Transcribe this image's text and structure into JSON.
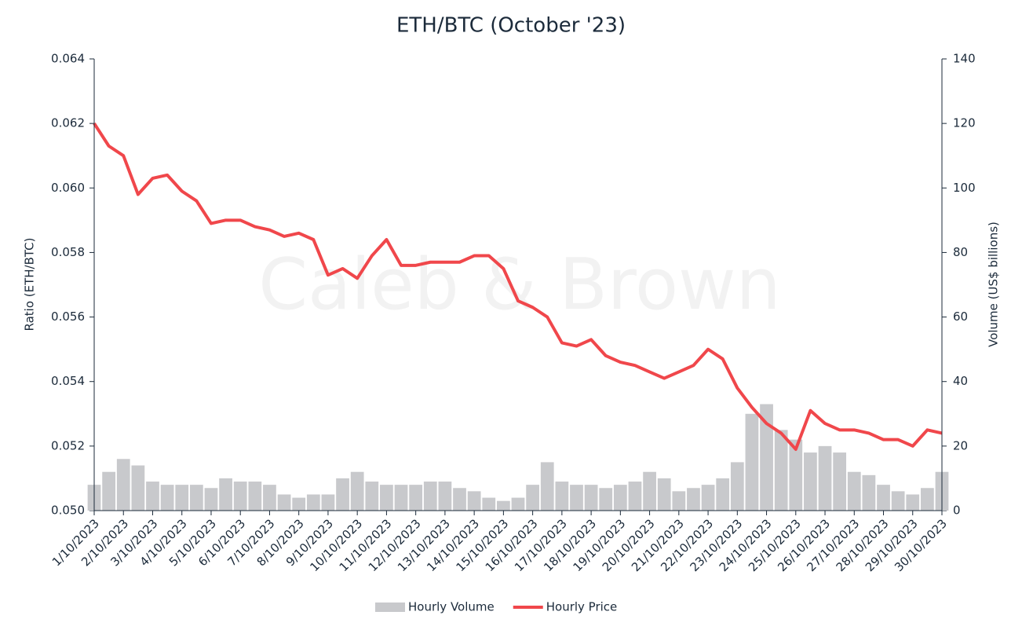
{
  "chart_data": {
    "type": "bar-line",
    "title": "ETH/BTC (October '23)",
    "watermark": "Caleb & Brown",
    "y_label": "Ratio (ETH/BTC)",
    "y2_label": "Volume (US$ billions)",
    "categories": [
      "1/10/2023",
      null,
      "2/10/2023",
      null,
      "3/10/2023",
      null,
      "4/10/2023",
      null,
      "5/10/2023",
      null,
      "6/10/2023",
      null,
      "7/10/2023",
      null,
      "8/10/2023",
      null,
      "9/10/2023",
      null,
      "10/10/2023",
      null,
      "11/10/2023",
      null,
      "12/10/2023",
      null,
      "13/10/2023",
      null,
      "14/10/2023",
      null,
      "15/10/2023",
      null,
      "16/10/2023",
      null,
      "17/10/2023",
      null,
      "18/10/2023",
      null,
      "19/10/2023",
      null,
      "20/10/2023",
      null,
      "21/10/2023",
      null,
      "22/10/2023",
      null,
      "23/10/2023",
      null,
      "24/10/2023",
      null,
      "25/10/2023",
      null,
      "26/10/2023",
      null,
      "27/10/2023",
      null,
      "28/10/2023",
      null,
      "29/10/2023",
      null,
      "30/10/2023"
    ],
    "series": [
      {
        "name": "Hourly Volume",
        "type": "bar",
        "axis": "y2",
        "color": "#c8c9cc",
        "values": [
          8,
          12,
          16,
          14,
          9,
          8,
          8,
          8,
          7,
          10,
          9,
          9,
          8,
          5,
          4,
          5,
          5,
          10,
          12,
          9,
          8,
          8,
          8,
          9,
          9,
          7,
          6,
          4,
          3,
          4,
          8,
          15,
          9,
          8,
          8,
          7,
          8,
          9,
          12,
          10,
          6,
          7,
          8,
          10,
          15,
          30,
          33,
          25,
          22,
          18,
          20,
          18,
          12,
          11,
          8,
          6,
          5,
          7,
          12
        ]
      },
      {
        "name": "Hourly Price",
        "type": "line",
        "axis": "y",
        "color": "#f0474b",
        "values": [
          0.062,
          0.0613,
          0.061,
          0.0598,
          0.0603,
          0.0604,
          0.0599,
          0.0596,
          0.0589,
          0.059,
          0.059,
          0.0588,
          0.0587,
          0.0585,
          0.0586,
          0.0584,
          0.0573,
          0.0575,
          0.0572,
          0.0579,
          0.0584,
          0.0576,
          0.0576,
          0.0577,
          0.0577,
          0.0577,
          0.0579,
          0.0579,
          0.0575,
          0.0565,
          0.0563,
          0.056,
          0.0552,
          0.0551,
          0.0553,
          0.0548,
          0.0546,
          0.0545,
          0.0543,
          0.0541,
          0.0543,
          0.0545,
          0.055,
          0.0547,
          0.0538,
          0.0532,
          0.0527,
          0.0524,
          0.0519,
          0.0531,
          0.0527,
          0.0525,
          0.0525,
          0.0524,
          0.0522,
          0.0522,
          0.052,
          0.0525,
          0.0524
        ]
      }
    ],
    "ylim": [
      0.05,
      0.064
    ],
    "yticks": [
      {
        "value": 0.05,
        "label": "0.050"
      },
      {
        "value": 0.052,
        "label": "0.052"
      },
      {
        "value": 0.054,
        "label": "0.054"
      },
      {
        "value": 0.056,
        "label": "0.056"
      },
      {
        "value": 0.058,
        "label": "0.058"
      },
      {
        "value": 0.06,
        "label": "0.060"
      },
      {
        "value": 0.062,
        "label": "0.062"
      },
      {
        "value": 0.064,
        "label": "0.064"
      }
    ],
    "y2lim": [
      0,
      140
    ],
    "y2ticks": [
      0,
      20,
      40,
      60,
      80,
      100,
      120,
      140
    ],
    "legend": "bottom"
  }
}
